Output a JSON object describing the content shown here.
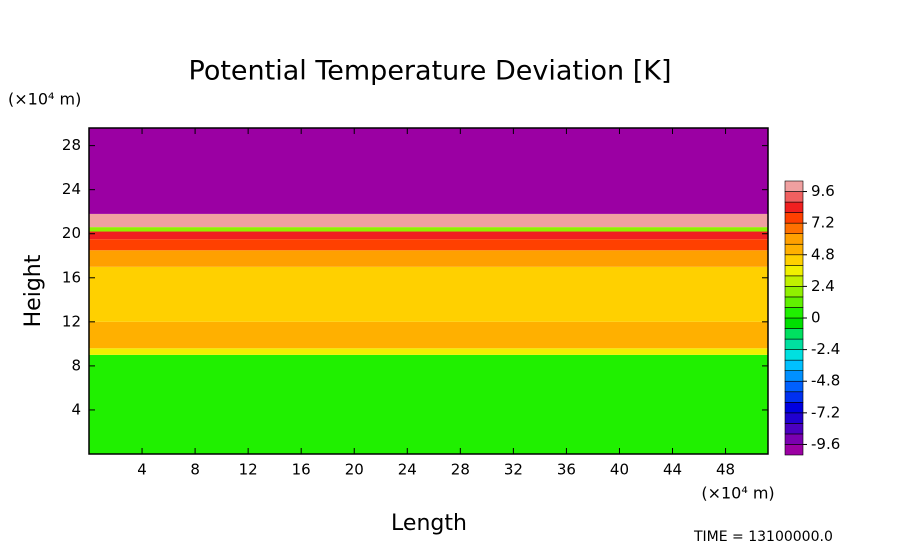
{
  "chart_data": {
    "type": "contour",
    "title": "Potential Temperature Deviation [K]",
    "xlabel": "Length",
    "ylabel": "Height",
    "xunit": "(×10⁴ m)",
    "yunit": "(×10⁴ m)",
    "footer": "TIME =  13100000.0",
    "xlim": [
      0,
      51.2
    ],
    "ylim": [
      0,
      29.6
    ],
    "xticks": [
      4,
      8,
      12,
      16,
      20,
      24,
      28,
      32,
      36,
      40,
      44,
      48
    ],
    "yticks": [
      4,
      8,
      12,
      16,
      20,
      24,
      28
    ],
    "y_edges": [
      0,
      9,
      9.6,
      12,
      17,
      18.5,
      19.5,
      20.2,
      20.6,
      21.8,
      29.6
    ],
    "z": [
      0.4,
      3.6,
      5.2,
      4.4,
      5.6,
      7.2,
      8,
      1.6,
      10,
      -10
    ],
    "clevels": [
      -10.4,
      -9.6,
      -8.8,
      -8,
      -7.2,
      -6.4,
      -5.6,
      -4.8,
      -4,
      -3.2,
      -2.4,
      -1.6,
      -0.8,
      0,
      0.8,
      1.6,
      2.4,
      3.2,
      4,
      4.8,
      5.6,
      6.4,
      7.2,
      8,
      8.8,
      9.6,
      10.4
    ],
    "cticks": [
      -9.6,
      -7.2,
      -4.8,
      -2.4,
      0,
      2.4,
      4.8,
      7.2,
      9.6
    ],
    "colors": [
      "#9b00a3",
      "#7a00b0",
      "#4b00c0",
      "#2000d0",
      "#0000e0",
      "#0030f0",
      "#0060ff",
      "#0090ff",
      "#00c0ff",
      "#00e0e0",
      "#00e0a0",
      "#00e060",
      "#00e000",
      "#20f000",
      "#60f000",
      "#90f000",
      "#c0f000",
      "#f0f000",
      "#ffd000",
      "#ffb000",
      "#ffa000",
      "#ff7000",
      "#ff4000",
      "#f02020",
      "#f06060",
      "#f0a0a0"
    ]
  }
}
